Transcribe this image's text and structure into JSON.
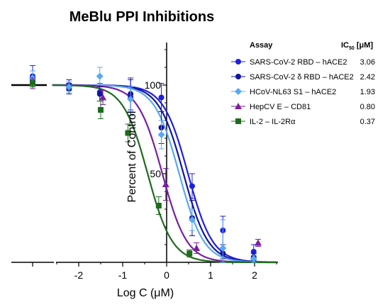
{
  "chart_data": {
    "type": "scatter",
    "title": "MeBlu PPI Inhibitions",
    "xlabel": "Log C (μM)",
    "ylabel": "Percent of Control",
    "xlim": [
      -2.6,
      2.5
    ],
    "ylim": [
      0,
      125
    ],
    "x_ticks": [
      "-2",
      "-1",
      "0",
      "1",
      "2"
    ],
    "x_tick_values": [
      -2,
      -1,
      0,
      1,
      2
    ],
    "y_ticks": [
      "50",
      "100"
    ],
    "y_tick_values": [
      50,
      100
    ],
    "legend": {
      "header_assay": "Assay",
      "header_ic50": "IC",
      "header_ic50_sub": "50",
      "header_ic50_unit": " [μM]",
      "placement": "top-right"
    },
    "series": [
      {
        "name": "SARS-CoV-2 RBD – hACE2",
        "ic50": "3.06",
        "color": "#1f1fe0",
        "marker": "circle",
        "control": {
          "y": 105,
          "err": 6
        },
        "points": [
          {
            "x": -2.22,
            "y": 100,
            "err": 3
          },
          {
            "x": -1.52,
            "y": 96,
            "err": 5
          },
          {
            "x": -0.82,
            "y": 93,
            "err": 10
          },
          {
            "x": -0.12,
            "y": 93,
            "err": 8
          },
          {
            "x": 0.58,
            "y": 43,
            "err": 7
          },
          {
            "x": 1.28,
            "y": 18,
            "err": 8
          },
          {
            "x": 1.98,
            "y": 6,
            "err": 4
          }
        ]
      },
      {
        "name": "SARS-CoV-2 δ RBD – hACE2",
        "ic50": "2.42",
        "color": "#14149c",
        "marker": "circle",
        "control": {
          "y": 103,
          "err": 5
        },
        "points": [
          {
            "x": -2.22,
            "y": 98,
            "err": 3
          },
          {
            "x": -1.52,
            "y": 95,
            "err": 4
          },
          {
            "x": -0.82,
            "y": 95,
            "err": 9
          },
          {
            "x": -0.12,
            "y": 76,
            "err": 9
          },
          {
            "x": 0.58,
            "y": 25,
            "err": 10
          },
          {
            "x": 1.28,
            "y": 5,
            "err": 3
          },
          {
            "x": 1.98,
            "y": 3,
            "err": 2
          }
        ]
      },
      {
        "name": "HCoV-NL63 S1 – hACE2",
        "ic50": "1.93",
        "color": "#5aa8ef",
        "marker": "diamond",
        "control": {
          "y": 104,
          "err": 4
        },
        "points": [
          {
            "x": -2.22,
            "y": 99,
            "err": 3
          },
          {
            "x": -1.52,
            "y": 105,
            "err": 5
          },
          {
            "x": -0.82,
            "y": 92,
            "err": 7
          },
          {
            "x": -0.12,
            "y": 72,
            "err": 8
          },
          {
            "x": 0.58,
            "y": 24,
            "err": 6
          },
          {
            "x": 1.28,
            "y": 8,
            "err": 16
          },
          {
            "x": 1.98,
            "y": 2,
            "err": 2
          }
        ]
      },
      {
        "name": "HepCV E – CD81",
        "ic50": "0.80",
        "color": "#7a1f9e",
        "marker": "triangle",
        "control": {
          "y": 101,
          "err": 3
        },
        "points": [
          {
            "x": -1.45,
            "y": 93,
            "err": 4
          },
          {
            "x": -0.02,
            "y": 44,
            "err": 9
          },
          {
            "x": 0.68,
            "y": 8,
            "err": 3
          },
          {
            "x": 2.08,
            "y": 11,
            "err": 2
          }
        ]
      },
      {
        "name": "IL-2 – IL-2Rα",
        "ic50": "0.37",
        "color": "#1e6b1e",
        "marker": "square",
        "control": {
          "y": 101,
          "err": 2
        },
        "points": [
          {
            "x": -1.5,
            "y": 86,
            "err": 5
          },
          {
            "x": -0.88,
            "y": 73,
            "err": 5
          },
          {
            "x": -0.18,
            "y": 32,
            "err": 5
          },
          {
            "x": 0.52,
            "y": 5,
            "err": 2
          }
        ]
      }
    ]
  }
}
